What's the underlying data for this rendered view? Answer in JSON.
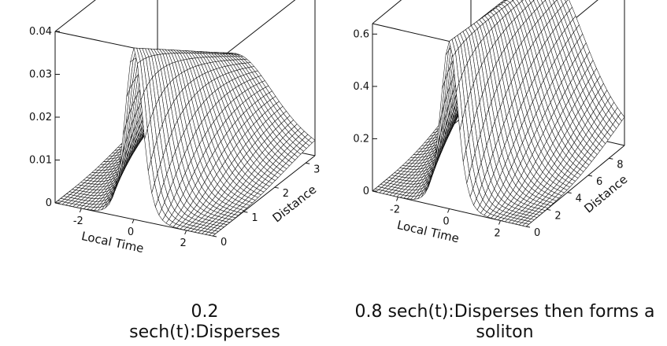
{
  "chart_data": [
    {
      "type": "surface",
      "caption": "0.2 sech(t):Disperses",
      "xlabel": "Local Time",
      "ylabel": "Distance",
      "zlabel": "",
      "x_ticks": [
        "-2",
        "0",
        "2"
      ],
      "y_ticks": [
        "0",
        "1",
        "2",
        "3"
      ],
      "z_ticks": [
        "0",
        "0.01",
        "0.02",
        "0.03",
        "0.04"
      ],
      "xlim": [
        -3,
        3
      ],
      "ylim": [
        0,
        3.3
      ],
      "zlim": [
        0,
        0.04
      ],
      "amplitude": 0.2,
      "peak_start": 0.04,
      "peak_end": 0.02
    },
    {
      "type": "surface",
      "caption": "0.8 sech(t):Disperses then forms a soliton",
      "xlabel": "Local Time",
      "ylabel": "Distance",
      "zlabel": "",
      "x_ticks": [
        "-2",
        "0",
        "2"
      ],
      "y_ticks": [
        "0",
        "2",
        "4",
        "6",
        "8"
      ],
      "z_ticks": [
        "0",
        "0.2",
        "0.4",
        "0.6"
      ],
      "xlim": [
        -3,
        3
      ],
      "ylim": [
        0,
        9.5
      ],
      "zlim": [
        0,
        0.64
      ],
      "amplitude": 0.8,
      "peak_start": 0.64,
      "peak_end": 0.6
    }
  ]
}
